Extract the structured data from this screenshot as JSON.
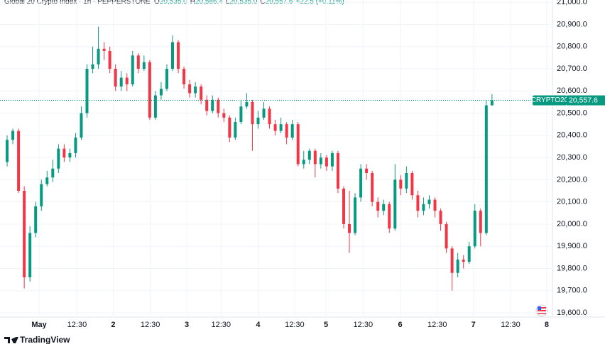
{
  "chart_data": {
    "type": "candlestick",
    "title": "Global 20 Crypto Index · 1h · PEPPERSTONE",
    "ohlc_legend": [
      {
        "key": "O",
        "text": "20,535.0"
      },
      {
        "key": "H",
        "text": "20,586.4"
      },
      {
        "key": "L",
        "text": "20,535.0"
      },
      {
        "key": "C",
        "text": "20,557.6"
      }
    ],
    "change": "+22.5 (+0.11%)",
    "open": [
      20280,
      20380,
      20420,
      20150,
      19760,
      19960,
      20080,
      20180,
      20210,
      20250,
      20340,
      20300,
      20320,
      20390,
      20500,
      20700,
      20720,
      20790,
      20780,
      20700,
      20620,
      20660,
      20630,
      20760,
      20700,
      20730,
      20480,
      20580,
      20610,
      20700,
      20820,
      20700,
      20630,
      20590,
      20620,
      20560,
      20510,
      20560,
      20500,
      20480,
      20390,
      20460,
      20530,
      20550,
      20450,
      20480,
      20520,
      20450,
      20420,
      20450,
      20390,
      20450,
      20270,
      20290,
      20330,
      20270,
      20300,
      20260,
      20320,
      20160,
      20000,
      19960,
      20120,
      20250,
      20230,
      20100,
      20060,
      20090,
      19980,
      20200,
      20160,
      20230,
      20130,
      20060,
      20090,
      20110,
      20060,
      20000,
      19890,
      19780,
      19840,
      19830,
      19900,
      20060,
      19960,
      20535
    ],
    "high": [
      20400,
      20430,
      20430,
      20170,
      19990,
      20100,
      20200,
      20240,
      20290,
      20360,
      20360,
      20340,
      20410,
      20530,
      20720,
      20800,
      20890,
      20820,
      20800,
      20720,
      20690,
      20680,
      20780,
      20770,
      20760,
      20740,
      20600,
      20640,
      20720,
      20850,
      20830,
      20710,
      20650,
      20640,
      20630,
      20580,
      20580,
      20570,
      20520,
      20490,
      20480,
      20560,
      20590,
      20560,
      20510,
      20550,
      20530,
      20470,
      20480,
      20460,
      20470,
      20460,
      20330,
      20340,
      20340,
      20320,
      20310,
      20330,
      20330,
      20170,
      20150,
      20140,
      20270,
      20270,
      20240,
      20120,
      20110,
      20100,
      20270,
      20220,
      20260,
      20240,
      20150,
      20120,
      20130,
      20120,
      20070,
      20010,
      19900,
      19870,
      19860,
      19920,
      20090,
      20070,
      20560,
      20586.4
    ],
    "low": [
      20260,
      20360,
      20140,
      19710,
      19740,
      19940,
      20060,
      20170,
      20190,
      20230,
      20280,
      20280,
      20300,
      20380,
      20480,
      20680,
      20700,
      20740,
      20680,
      20600,
      20600,
      20600,
      20620,
      20680,
      20690,
      20470,
      20470,
      20560,
      20600,
      20690,
      20680,
      20610,
      20570,
      20570,
      20540,
      20490,
      20500,
      20480,
      20460,
      20370,
      20380,
      20450,
      20520,
      20330,
      20430,
      20470,
      20430,
      20400,
      20410,
      20360,
      20380,
      20260,
      20250,
      20270,
      20210,
      20250,
      20240,
      20240,
      20140,
      19980,
      19870,
      19950,
      20100,
      20200,
      20080,
      20030,
      20040,
      19960,
      19970,
      20130,
      20140,
      20110,
      20030,
      20040,
      20070,
      20030,
      19970,
      19870,
      19700,
      19760,
      19800,
      19820,
      19890,
      19900,
      19950,
      20535
    ],
    "close": [
      20380,
      20420,
      20150,
      19760,
      19960,
      20080,
      20180,
      20210,
      20250,
      20340,
      20300,
      20320,
      20390,
      20500,
      20700,
      20720,
      20790,
      20780,
      20700,
      20620,
      20660,
      20630,
      20760,
      20700,
      20730,
      20480,
      20580,
      20610,
      20700,
      20820,
      20700,
      20630,
      20590,
      20620,
      20560,
      20510,
      20560,
      20500,
      20480,
      20390,
      20460,
      20530,
      20550,
      20450,
      20480,
      20520,
      20450,
      20420,
      20450,
      20390,
      20450,
      20270,
      20290,
      20330,
      20270,
      20300,
      20260,
      20320,
      20160,
      20000,
      19960,
      20120,
      20250,
      20230,
      20100,
      20060,
      20090,
      19980,
      20200,
      20160,
      20230,
      20130,
      20060,
      20090,
      20110,
      20060,
      20000,
      19890,
      19780,
      19840,
      19830,
      19900,
      20060,
      19960,
      20535,
      20557.6
    ],
    "up_color": "#089981",
    "down_color": "#f23645",
    "last_price": {
      "name": "CRYPTO20",
      "value": 20557.6,
      "label": "20,557.6"
    },
    "ylim": [
      19581,
      21010
    ],
    "yticks": [
      {
        "value": 19600,
        "label": "19,600.0"
      },
      {
        "value": 19700,
        "label": "19,700.0"
      },
      {
        "value": 19800,
        "label": "19,800.0"
      },
      {
        "value": 19900,
        "label": "19,900.0"
      },
      {
        "value": 20000,
        "label": "20,000.0"
      },
      {
        "value": 20100,
        "label": "20,100.0"
      },
      {
        "value": 20200,
        "label": "20,200.0"
      },
      {
        "value": 20300,
        "label": "20,300.0"
      },
      {
        "value": 20400,
        "label": "20,400.0"
      },
      {
        "value": 20500,
        "label": "20,500.0"
      },
      {
        "value": 20600,
        "label": "20,600.0"
      },
      {
        "value": 20700,
        "label": "20,700.0"
      },
      {
        "value": 20800,
        "label": "20,800.0"
      },
      {
        "value": 20900,
        "label": "20,900.0"
      },
      {
        "value": 21000,
        "label": "21,000.0"
      }
    ],
    "xlim": [
      -1.25,
      95.6
    ],
    "xticks": [
      {
        "value": 5.6,
        "label": "May"
      },
      {
        "value": 12.25,
        "label": "12:30"
      },
      {
        "value": 18.6,
        "label": "2"
      },
      {
        "value": 25.1,
        "label": "12:30"
      },
      {
        "value": 31.5,
        "label": "3"
      },
      {
        "value": 37.5,
        "label": "12:30"
      },
      {
        "value": 44,
        "label": "4"
      },
      {
        "value": 50.4,
        "label": "12:30"
      },
      {
        "value": 55.9,
        "label": "5"
      },
      {
        "value": 62.4,
        "label": "12:30"
      },
      {
        "value": 68.9,
        "label": "6"
      },
      {
        "value": 75.4,
        "label": "12:30"
      },
      {
        "value": 81.75,
        "label": "7"
      },
      {
        "value": 88.25,
        "label": "12:30"
      },
      {
        "value": 94.6,
        "label": "8"
      }
    ],
    "grid": true,
    "brand": "TradingView"
  }
}
